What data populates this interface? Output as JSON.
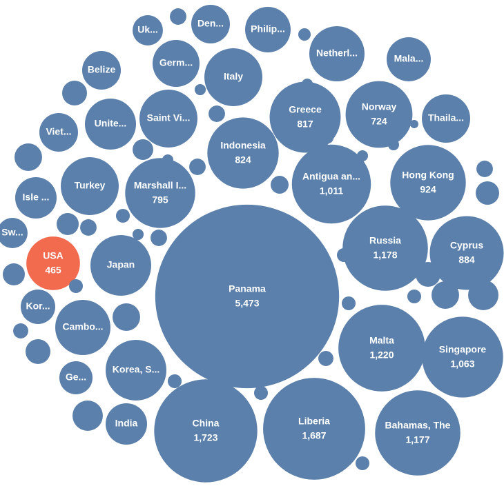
{
  "chart_data": {
    "type": "bubble",
    "categories": [
      "Panama",
      "China",
      "Liberia",
      "Bahamas, The",
      "Malta",
      "Singapore",
      "Russia",
      "Cyprus",
      "Hong Kong",
      "Antigua an...",
      "Indonesia",
      "Greece",
      "Norway",
      "Marshall I...",
      "USA",
      "Japan",
      "Korea, S...",
      "Cambo...",
      "Turkey",
      "Saint Vi...",
      "Italy",
      "Thaila...",
      "Netherl...",
      "Mala...",
      "Philip...",
      "Den...",
      "Uk...",
      "Germ...",
      "Belize",
      "Unite...",
      "Viet...",
      "Isle ...",
      "Sw...",
      "Kor...",
      "Ge...",
      "India",
      null,
      null,
      null,
      null,
      null,
      null,
      null,
      null,
      null,
      null,
      null,
      null,
      null,
      null,
      null,
      null,
      null,
      null,
      null,
      null,
      null,
      null,
      null,
      null,
      null,
      null,
      null,
      null,
      null,
      null,
      null,
      null,
      null,
      null,
      null,
      null,
      null,
      null,
      null
    ],
    "values": [
      5473,
      1723,
      1687,
      1177,
      1220,
      1063,
      1178,
      884,
      924,
      1011,
      824,
      817,
      724,
      795,
      465,
      597,
      597,
      494,
      544,
      544,
      544,
      378,
      494,
      316,
      336,
      242,
      149,
      357,
      242,
      423,
      242,
      278,
      149,
      193,
      178,
      278,
      44,
      25,
      100,
      123,
      79,
      37,
      100,
      149,
      44,
      89,
      123,
      149,
      100,
      31,
      79,
      44,
      31,
      123,
      31,
      20,
      44,
      69,
      52,
      20,
      31,
      31,
      31,
      37,
      31,
      44,
      20,
      44,
      52,
      20,
      31,
      20,
      20,
      11,
      20
    ],
    "value_labels": [
      "5,473",
      "1,723",
      "1,687",
      "1,177",
      "1,220",
      "1,063",
      "1,178",
      "884",
      "924",
      "1,011",
      "824",
      "817",
      "724",
      "795",
      "465",
      null,
      null,
      null,
      null,
      null,
      null,
      null,
      null,
      null,
      null,
      null,
      null,
      null,
      null,
      null,
      null,
      null,
      null,
      null,
      null,
      null,
      null,
      null,
      null,
      null,
      null,
      null,
      null,
      null,
      null,
      null,
      null,
      null,
      null,
      null,
      null,
      null,
      null,
      null,
      null,
      null,
      null,
      null,
      null,
      null,
      null,
      null,
      null,
      null,
      null,
      null,
      null,
      null,
      null,
      null,
      null,
      null,
      null,
      null,
      null
    ],
    "color": "#5b80ab",
    "highlight": {
      "category": "USA",
      "color": "#f26b4f"
    }
  }
}
